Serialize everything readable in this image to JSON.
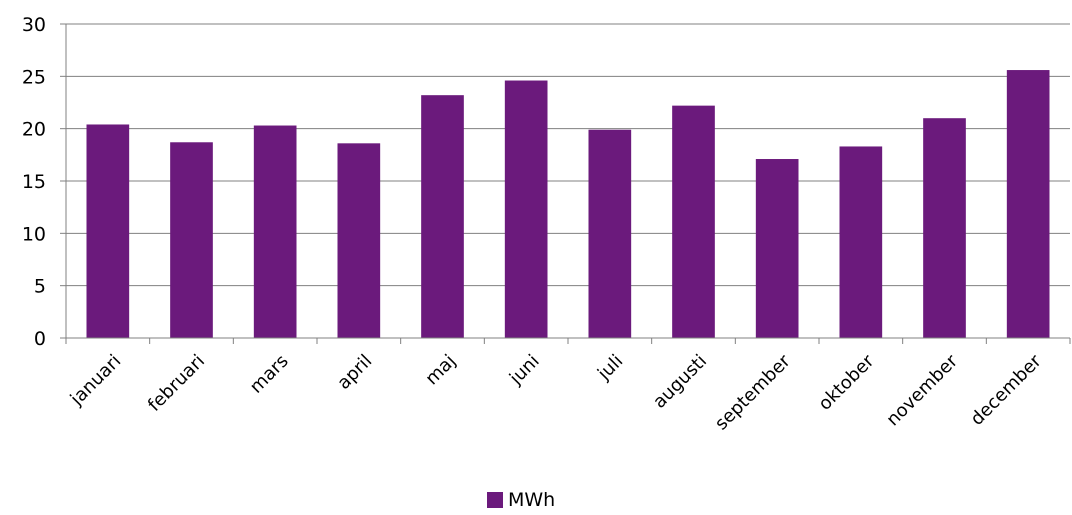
{
  "chart_data": {
    "type": "bar",
    "categories": [
      "januari",
      "februari",
      "mars",
      "april",
      "maj",
      "juni",
      "juli",
      "augusti",
      "september",
      "oktober",
      "november",
      "december"
    ],
    "series": [
      {
        "name": "MWh",
        "values": [
          20.4,
          18.7,
          20.3,
          18.6,
          23.2,
          24.6,
          19.9,
          22.2,
          17.1,
          18.3,
          21.0,
          25.6
        ]
      }
    ],
    "ylim": [
      0,
      30
    ],
    "yticks": [
      0,
      5,
      10,
      15,
      20,
      25,
      30
    ],
    "grid": true,
    "legend_position": "bottom",
    "colors": {
      "bar": "#6B1A7C",
      "grid": "#808080",
      "axis": "#808080"
    }
  }
}
